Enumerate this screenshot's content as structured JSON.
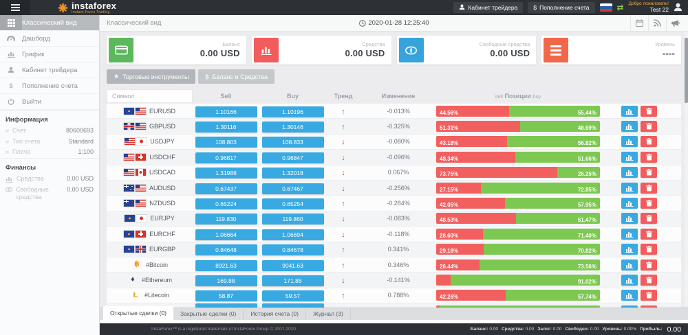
{
  "topbar": {
    "logo_text": "instaforex",
    "logo_tagline": "Instant Forex Trading",
    "cabinet_button": "Кабинет трейдера",
    "deposit_icon": "$",
    "deposit_button": "Пополнение счета",
    "welcome": "Добро пожаловать!",
    "username": "Test 22"
  },
  "sidebar": {
    "items": [
      {
        "label": "Классический вид",
        "icon": "grid-icon",
        "active": true
      },
      {
        "label": "Дашборд",
        "icon": "dashboard-icon",
        "active": false
      },
      {
        "label": "График",
        "icon": "chart-icon",
        "active": false
      },
      {
        "label": "Кабинет трейдера",
        "icon": "user-icon",
        "active": false
      },
      {
        "label": "Пополнение счета",
        "icon": "dollar-icon",
        "active": false
      },
      {
        "label": "Выйти",
        "icon": "power-icon",
        "active": false
      }
    ],
    "info_title": "Информация",
    "info_rows": [
      {
        "label": "Счет",
        "value": "80600693"
      },
      {
        "label": "Тип счета",
        "value": "Standard"
      },
      {
        "label": "Плечо",
        "value": "1:100"
      }
    ],
    "finance_title": "Финансы",
    "finance_rows": [
      {
        "label": "Средства",
        "value": "0.00 USD",
        "icon": "chart-icon"
      },
      {
        "label": "Свободные средства",
        "value": "0.00 USD",
        "icon": "coins-icon"
      }
    ]
  },
  "header": {
    "title": "Классический вид",
    "datetime": "2020-01-28 12:25:40"
  },
  "cards": [
    {
      "label": "Баланс",
      "value": "0.00 USD",
      "icon": "credit-card-icon",
      "color": "#5cb85c"
    },
    {
      "label": "Средства",
      "value": "0.00 USD",
      "icon": "bar-chart-icon",
      "color": "#f25c5c"
    },
    {
      "label": "Свободные средства",
      "value": "0.00 USD",
      "icon": "binoculars-icon",
      "color": "#36a3dc"
    },
    {
      "label": "Уровень",
      "value": "----",
      "icon": "list-icon",
      "color": "#f26649"
    }
  ],
  "toolbar": [
    {
      "label": "Торговые инструменты",
      "icon": "star-icon"
    },
    {
      "label": "Баланс и Средства",
      "icon": "dollar-icon"
    }
  ],
  "table": {
    "symbol_placeholder": "Символ",
    "headers": {
      "sell": "Sell",
      "buy": "Buy",
      "trend": "Тренд",
      "change": "Изменение",
      "pos_sell": "sell",
      "positions": "Позиции",
      "pos_buy": "buy"
    },
    "rows": [
      {
        "symbol": "EURUSD",
        "flags": [
          "eu",
          "us"
        ],
        "sell": "1.10166",
        "buy": "1.10196",
        "trend": "up",
        "change": "-0.013%",
        "sell_pct": 44.56,
        "buy_pct": 55.44,
        "sell_label": "44.56%",
        "buy_label": "55.44%"
      },
      {
        "symbol": "GBPUSD",
        "flags": [
          "gb",
          "us"
        ],
        "sell": "1.30116",
        "buy": "1.30146",
        "trend": "up",
        "change": "-0.325%",
        "sell_pct": 51.31,
        "buy_pct": 48.69,
        "sell_label": "51.31%",
        "buy_label": "48.69%"
      },
      {
        "symbol": "USDJPY",
        "flags": [
          "us",
          "jp"
        ],
        "sell": "108.803",
        "buy": "108.833",
        "trend": "down",
        "change": "-0.080%",
        "sell_pct": 43.18,
        "buy_pct": 56.82,
        "sell_label": "43.18%",
        "buy_label": "56.82%"
      },
      {
        "symbol": "USDCHF",
        "flags": [
          "us",
          "ch"
        ],
        "sell": "0.96817",
        "buy": "0.96847",
        "trend": "down",
        "change": "-0.096%",
        "sell_pct": 48.34,
        "buy_pct": 51.66,
        "sell_label": "48.34%",
        "buy_label": "51.66%"
      },
      {
        "symbol": "USDCAD",
        "flags": [
          "us",
          "ca"
        ],
        "sell": "1.31988",
        "buy": "1.32018",
        "trend": "down",
        "change": "0.067%",
        "sell_pct": 73.75,
        "buy_pct": 26.25,
        "sell_label": "73.75%",
        "buy_label": "26.25%"
      },
      {
        "symbol": "AUDUSD",
        "flags": [
          "au",
          "us"
        ],
        "sell": "0.67437",
        "buy": "0.67467",
        "trend": "down",
        "change": "-0.256%",
        "sell_pct": 27.15,
        "buy_pct": 72.85,
        "sell_label": "27.15%",
        "buy_label": "72.85%"
      },
      {
        "symbol": "NZDUSD",
        "flags": [
          "nz",
          "us"
        ],
        "sell": "0.65224",
        "buy": "0.65254",
        "trend": "up",
        "change": "-0.284%",
        "sell_pct": 42.05,
        "buy_pct": 57.95,
        "sell_label": "42.05%",
        "buy_label": "57.95%"
      },
      {
        "symbol": "EURJPY",
        "flags": [
          "eu",
          "jp"
        ],
        "sell": "119.830",
        "buy": "119.860",
        "trend": "down",
        "change": "-0.083%",
        "sell_pct": 48.53,
        "buy_pct": 51.47,
        "sell_label": "48.53%",
        "buy_label": "51.47%"
      },
      {
        "symbol": "EURCHF",
        "flags": [
          "eu",
          "ch"
        ],
        "sell": "1.06664",
        "buy": "1.06694",
        "trend": "down",
        "change": "-0.118%",
        "sell_pct": 28.6,
        "buy_pct": 71.4,
        "sell_label": "28.60%",
        "buy_label": "71.40%"
      },
      {
        "symbol": "EURGBP",
        "flags": [
          "eu",
          "gb"
        ],
        "sell": "0.84648",
        "buy": "0.84678",
        "trend": "up",
        "change": "0.341%",
        "sell_pct": 29.18,
        "buy_pct": 70.82,
        "sell_label": "29.18%",
        "buy_label": "70.82%"
      },
      {
        "symbol": "#Bitcoin",
        "crypto_glyph": "฿",
        "crypto_color": "#f7931a",
        "sell": "8921.63",
        "buy": "9041.63",
        "trend": "up",
        "change": "0.346%",
        "sell_pct": 26.44,
        "buy_pct": 73.56,
        "sell_label": "26.44%",
        "buy_label": "73.56%"
      },
      {
        "symbol": "#Ethereum",
        "crypto_glyph": "♦",
        "crypto_color": "#3f4269",
        "sell": "169.88",
        "buy": "171.88",
        "trend": "down",
        "change": "-0.141%",
        "sell_pct": 8.98,
        "buy_pct": 91.02,
        "sell_label": "",
        "buy_label": "91.02%"
      },
      {
        "symbol": "#Litecoin",
        "crypto_glyph": "Ł",
        "crypto_color": "#d9a62b",
        "sell": "58.87",
        "buy": "59.57",
        "trend": "up",
        "change": "0.788%",
        "sell_pct": 42.26,
        "buy_pct": 57.74,
        "sell_label": "42.26%",
        "buy_label": "57.74%"
      },
      {
        "symbol": "",
        "crypto_glyph": "♦",
        "crypto_color": "#4aa3df",
        "sell": "",
        "buy": "",
        "trend": "up",
        "change": "",
        "sell_pct": 2,
        "buy_pct": 98,
        "sell_label": "",
        "buy_label": ""
      }
    ]
  },
  "tabs": [
    {
      "label": "Открытые сделки (0)",
      "active": true
    },
    {
      "label": "Закрытые сделки (0)",
      "active": false
    },
    {
      "label": "История счета (0)",
      "active": false
    },
    {
      "label": "Журнал (3)",
      "active": false
    }
  ],
  "footer": {
    "trademark": "InstaForex™ is a registered trademark of InstaForex Group © 2007-2020",
    "stats": [
      {
        "label": "Баланс:",
        "value": "0.00"
      },
      {
        "label": "Средства:",
        "value": "0.00"
      },
      {
        "label": "Залог:",
        "value": "0.00"
      },
      {
        "label": "Свободно:",
        "value": "0.00"
      },
      {
        "label": "Уровень:",
        "value": "0.00%"
      },
      {
        "label": "Прибыль:",
        "value": ""
      }
    ],
    "profit_value": "0.00"
  },
  "colors": {
    "accent_blue": "#39a9e2",
    "bar_red": "#f25f5f",
    "bar_green": "#7cc850",
    "up_green": "#2f9e44",
    "down_red": "#cc4437"
  }
}
